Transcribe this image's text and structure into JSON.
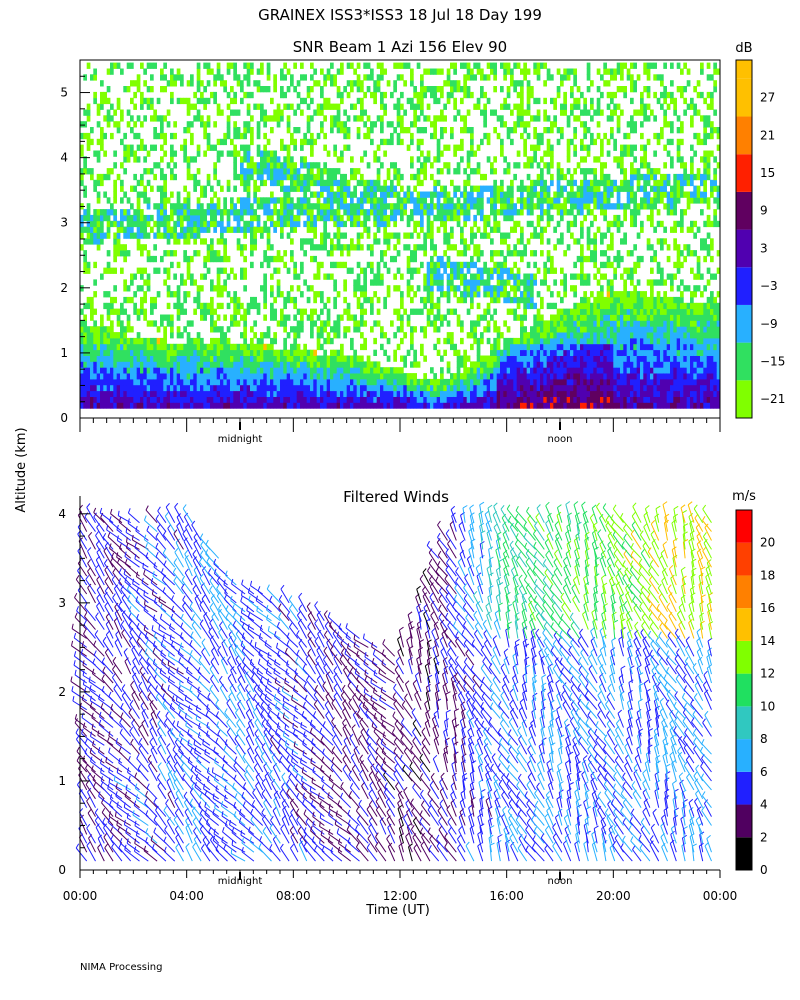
{
  "page": {
    "title": "GRAINEX ISS3*ISS3  18 Jul 18 Day 199",
    "ylabel": "Altitude (km)",
    "footer": "NIMA Processing",
    "midnight_label": "midnight",
    "noon_label": "noon"
  },
  "chart_data": [
    {
      "type": "heatmap",
      "title": "SNR Beam 1 Azi 156 Elev 90",
      "xlabel": "",
      "ylabel": "Altitude (km)",
      "xlim": [
        0,
        24
      ],
      "ylim": [
        0,
        5.5
      ],
      "y_ticks": [
        0,
        1,
        2,
        3,
        4,
        5
      ],
      "colorbar": {
        "unit": "dB",
        "range": [
          -24,
          33
        ],
        "tick_values": [
          -21,
          -15,
          -9,
          -3,
          3,
          9,
          15,
          21,
          27
        ],
        "tick_labels": [
          "−21",
          "−15",
          "−9",
          "−3",
          "3",
          "9",
          "15",
          "21",
          "27"
        ],
        "bins": [
          -24,
          -18,
          -12,
          -6,
          0,
          6,
          12,
          18,
          24,
          30,
          33
        ],
        "colors": [
          "#80ff00",
          "#30e060",
          "#28b0ff",
          "#2020ff",
          "#5000b0",
          "#600060",
          "#ff2000",
          "#ff8000",
          "#ffc000",
          "#ffc000"
        ]
      },
      "features": {
        "boundary_layer_top_km": [
          [
            0,
            1.4
          ],
          [
            2,
            1.2
          ],
          [
            4,
            1.1
          ],
          [
            6,
            1.1
          ],
          [
            8,
            1.0
          ],
          [
            10,
            0.9
          ],
          [
            12,
            0.7
          ],
          [
            13,
            0.5
          ],
          [
            14,
            0.6
          ],
          [
            16,
            1.1
          ],
          [
            18,
            1.6
          ],
          [
            20,
            1.9
          ],
          [
            22,
            1.8
          ],
          [
            24,
            1.7
          ]
        ],
        "elevated_layers": [
          {
            "t": [
              0,
              24
            ],
            "alt_km": [
              2.9,
              3.5
            ]
          },
          {
            "t": [
              6,
              13
            ],
            "alt_km": [
              3.9,
              3.1
            ]
          },
          {
            "t": [
              13,
              17
            ],
            "alt_km": [
              2.2,
              1.9
            ]
          }
        ]
      }
    },
    {
      "type": "scatter",
      "title": "Filtered Winds",
      "xlabel": "Time (UT)",
      "ylabel": "Altitude (km)",
      "xlim": [
        0,
        24
      ],
      "ylim": [
        0,
        4.2
      ],
      "x_tick_labels": [
        "00:00",
        "04:00",
        "08:00",
        "12:00",
        "16:00",
        "20:00",
        "00:00"
      ],
      "y_ticks": [
        0,
        1,
        2,
        3,
        4
      ],
      "colorbar": {
        "unit": "m/s",
        "range": [
          0,
          22
        ],
        "tick_values": [
          0,
          2,
          4,
          6,
          8,
          10,
          12,
          14,
          16,
          18,
          20
        ],
        "bins": [
          0,
          2,
          4,
          6,
          8,
          10,
          12,
          14,
          16,
          18,
          20,
          22
        ],
        "colors": [
          "#000000",
          "#500060",
          "#2020ff",
          "#28b0ff",
          "#30c8c0",
          "#20e060",
          "#80ff00",
          "#ffc000",
          "#ff8000",
          "#ff4000",
          "#ff0000"
        ]
      },
      "features": {
        "data_top_km": [
          [
            0,
            4.0
          ],
          [
            2,
            4.0
          ],
          [
            4,
            4.0
          ],
          [
            6,
            3.2
          ],
          [
            8,
            3.0
          ],
          [
            10,
            2.7
          ],
          [
            12,
            2.4
          ],
          [
            13,
            3.2
          ],
          [
            14,
            3.9
          ],
          [
            16,
            4.0
          ],
          [
            20,
            4.0
          ],
          [
            24,
            4.0
          ]
        ],
        "speed_regime": [
          [
            0,
            4
          ],
          [
            6,
            6
          ],
          [
            10,
            4
          ],
          [
            13,
            3
          ],
          [
            16,
            6
          ],
          [
            20,
            6
          ],
          [
            24,
            6
          ]
        ],
        "upper_speed_regime": [
          [
            14,
            4
          ],
          [
            16,
            10
          ],
          [
            20,
            12
          ],
          [
            22,
            14
          ],
          [
            24,
            14
          ]
        ]
      }
    }
  ]
}
